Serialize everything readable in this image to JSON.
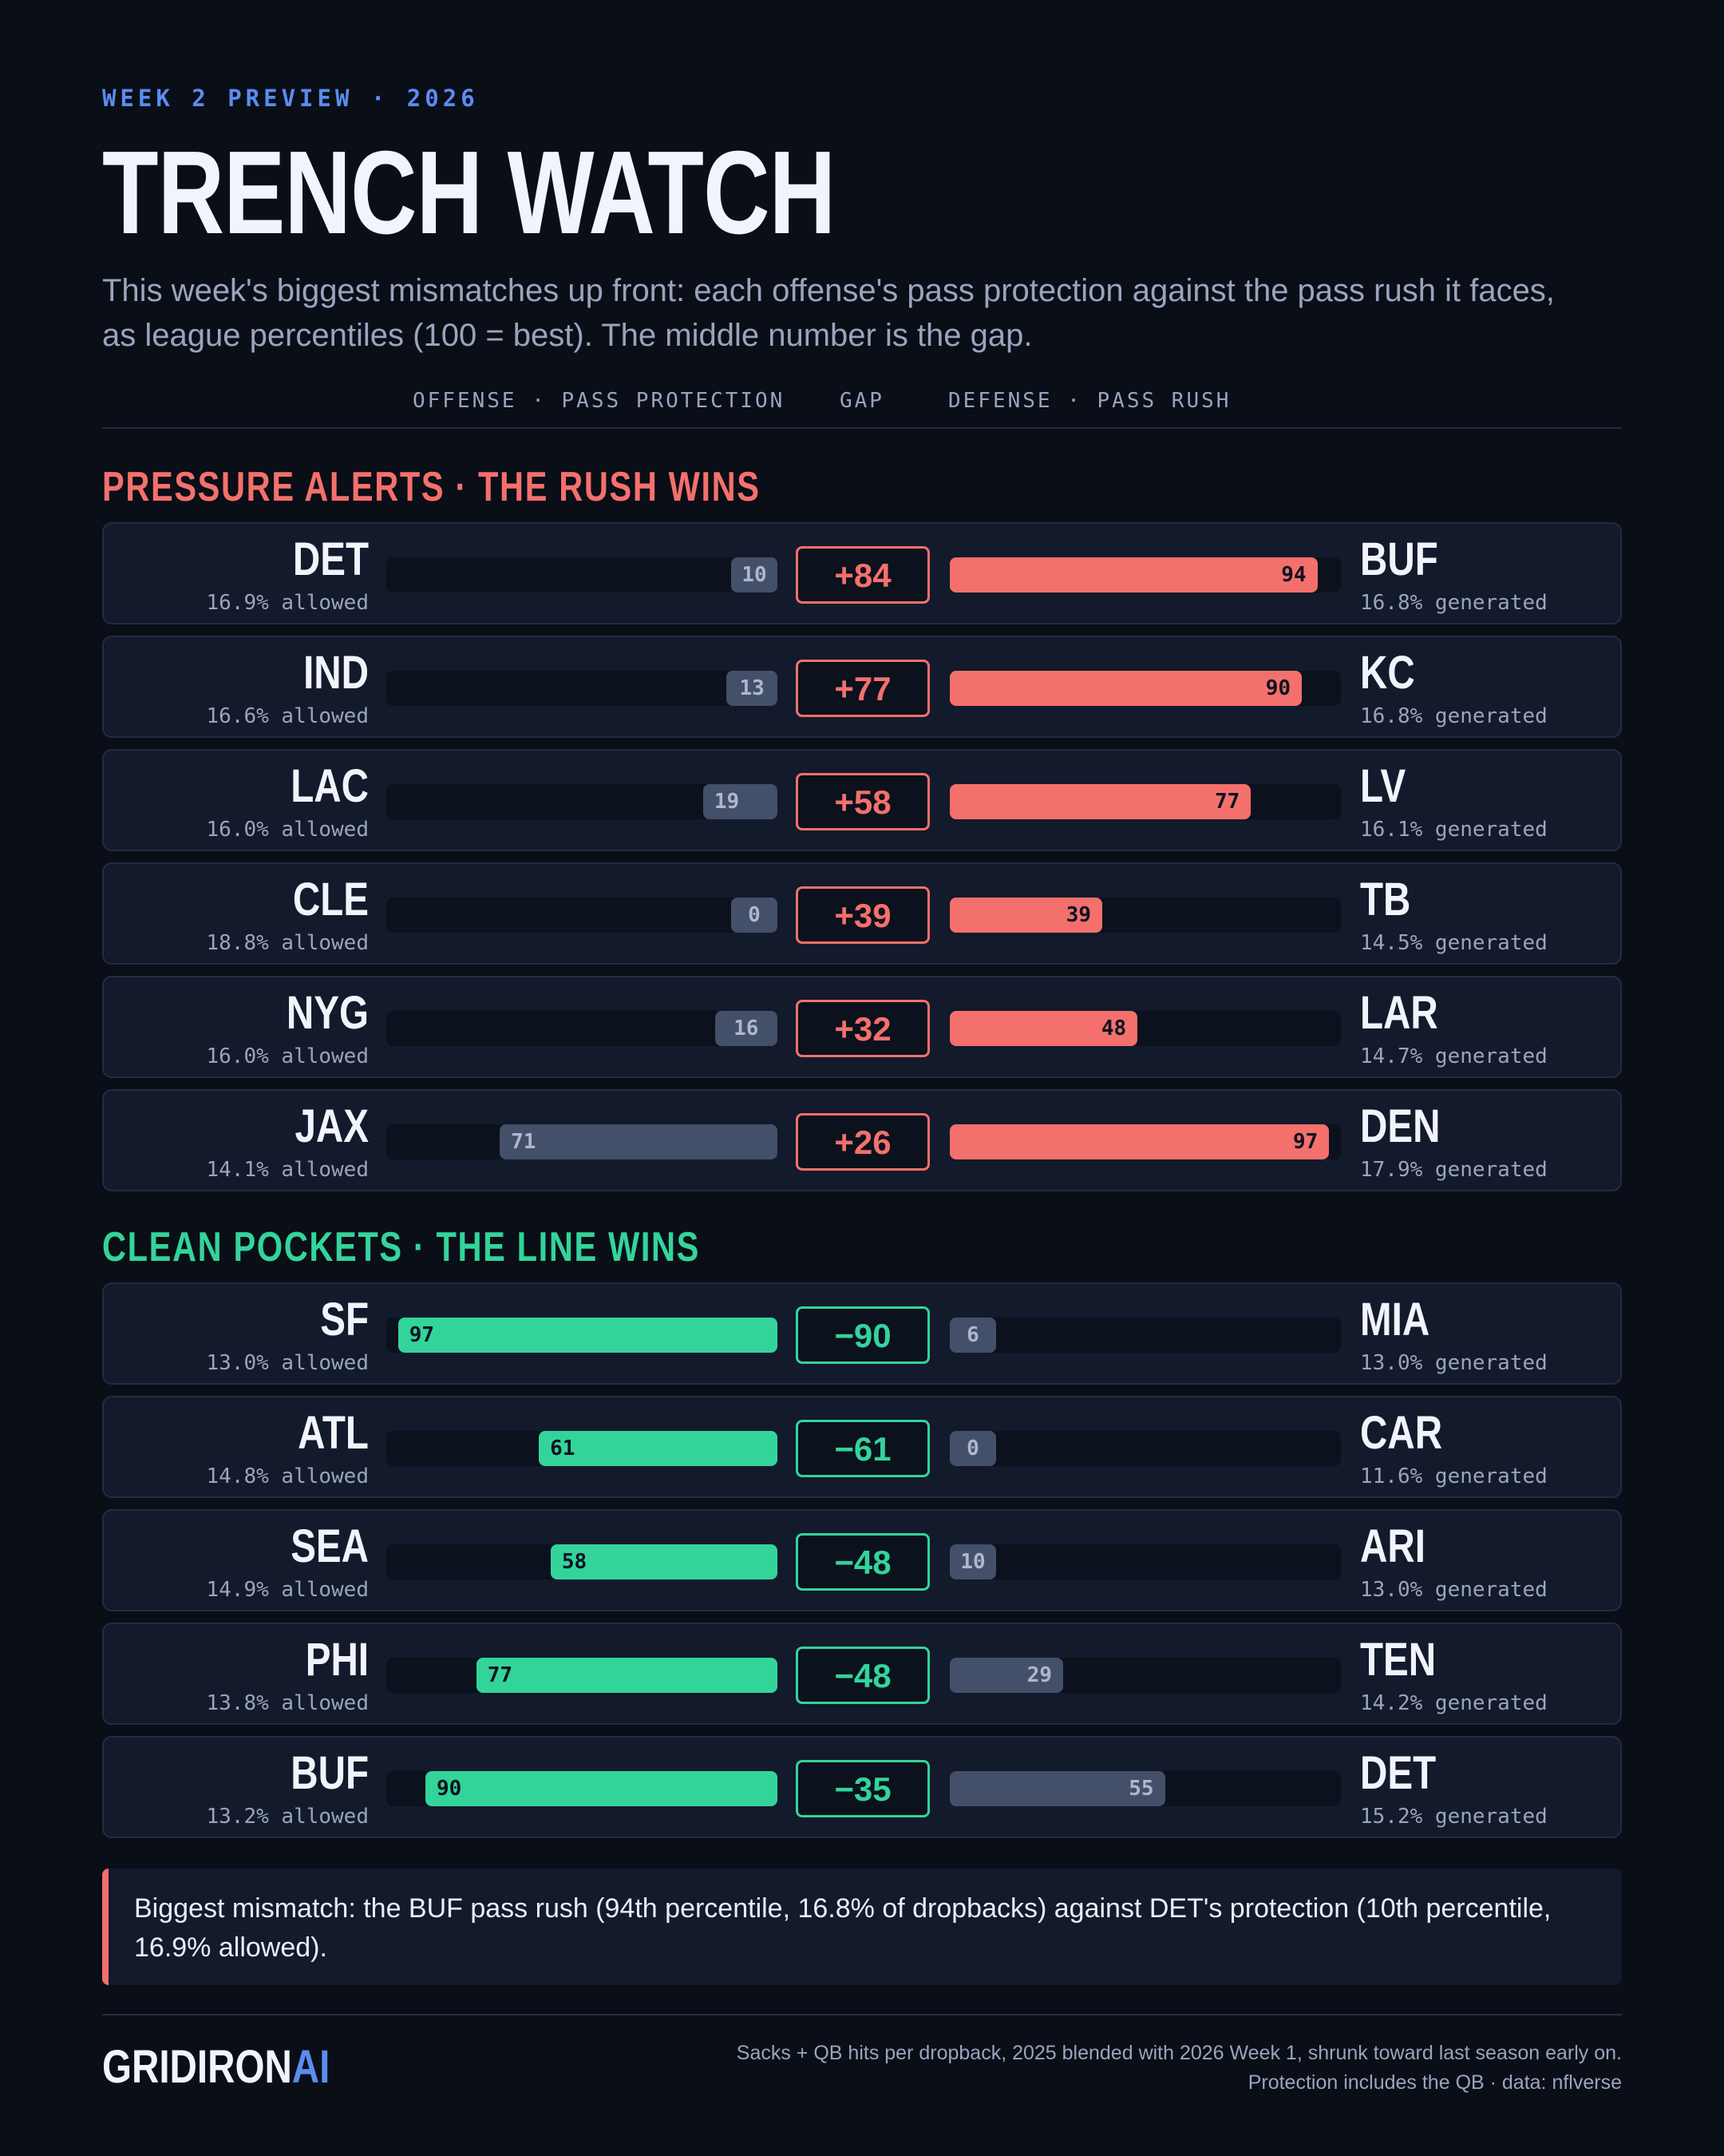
{
  "header": {
    "eyebrow": "WEEK 2 PREVIEW · 2026",
    "title": "TRENCH WATCH",
    "subtitle": "This week's biggest mismatches up front: each offense's pass protection against the pass rush it faces, as league percentiles (100 = best). The middle number is the gap."
  },
  "columns": {
    "offense": "OFFENSE · PASS PROTECTION",
    "gap": "GAP",
    "defense": "DEFENSE · PASS RUSH"
  },
  "colors": {
    "rush": "#f4706c",
    "line": "#33d49a",
    "neutral": "#445069",
    "accent": "#5b8cf0"
  },
  "chart_data": {
    "type": "bar",
    "value_range": [
      0,
      100
    ],
    "sections": [
      {
        "title": "PRESSURE ALERTS · THE RUSH WINS",
        "tone": "rush",
        "rows": [
          {
            "offense": "DET",
            "offense_rate": "16.9% allowed",
            "offense_pct": 10,
            "gap": "+84",
            "defense": "BUF",
            "defense_rate": "16.8% generated",
            "defense_pct": 94
          },
          {
            "offense": "IND",
            "offense_rate": "16.6% allowed",
            "offense_pct": 13,
            "gap": "+77",
            "defense": "KC",
            "defense_rate": "16.8% generated",
            "defense_pct": 90
          },
          {
            "offense": "LAC",
            "offense_rate": "16.0% allowed",
            "offense_pct": 19,
            "gap": "+58",
            "defense": "LV",
            "defense_rate": "16.1% generated",
            "defense_pct": 77
          },
          {
            "offense": "CLE",
            "offense_rate": "18.8% allowed",
            "offense_pct": 0,
            "gap": "+39",
            "defense": "TB",
            "defense_rate": "14.5% generated",
            "defense_pct": 39
          },
          {
            "offense": "NYG",
            "offense_rate": "16.0% allowed",
            "offense_pct": 16,
            "gap": "+32",
            "defense": "LAR",
            "defense_rate": "14.7% generated",
            "defense_pct": 48
          },
          {
            "offense": "JAX",
            "offense_rate": "14.1% allowed",
            "offense_pct": 71,
            "gap": "+26",
            "defense": "DEN",
            "defense_rate": "17.9% generated",
            "defense_pct": 97
          }
        ]
      },
      {
        "title": "CLEAN POCKETS · THE LINE WINS",
        "tone": "line",
        "rows": [
          {
            "offense": "SF",
            "offense_rate": "13.0% allowed",
            "offense_pct": 97,
            "gap": "−90",
            "defense": "MIA",
            "defense_rate": "13.0% generated",
            "defense_pct": 6
          },
          {
            "offense": "ATL",
            "offense_rate": "14.8% allowed",
            "offense_pct": 61,
            "gap": "−61",
            "defense": "CAR",
            "defense_rate": "11.6% generated",
            "defense_pct": 0
          },
          {
            "offense": "SEA",
            "offense_rate": "14.9% allowed",
            "offense_pct": 58,
            "gap": "−48",
            "defense": "ARI",
            "defense_rate": "13.0% generated",
            "defense_pct": 10
          },
          {
            "offense": "PHI",
            "offense_rate": "13.8% allowed",
            "offense_pct": 77,
            "gap": "−48",
            "defense": "TEN",
            "defense_rate": "14.2% generated",
            "defense_pct": 29
          },
          {
            "offense": "BUF",
            "offense_rate": "13.2% allowed",
            "offense_pct": 90,
            "gap": "−35",
            "defense": "DET",
            "defense_rate": "15.2% generated",
            "defense_pct": 55
          }
        ]
      }
    ]
  },
  "callout": "Biggest mismatch: the BUF pass rush (94th percentile, 16.8% of dropbacks) against DET's protection (10th percentile, 16.9% allowed).",
  "footer": {
    "logo_main": "GRIDIRON",
    "logo_accent": "AI",
    "note_line1": "Sacks + QB hits per dropback, 2025 blended with 2026 Week 1, shrunk toward last season early on.",
    "note_line2": "Protection includes the QB · data: nflverse"
  }
}
